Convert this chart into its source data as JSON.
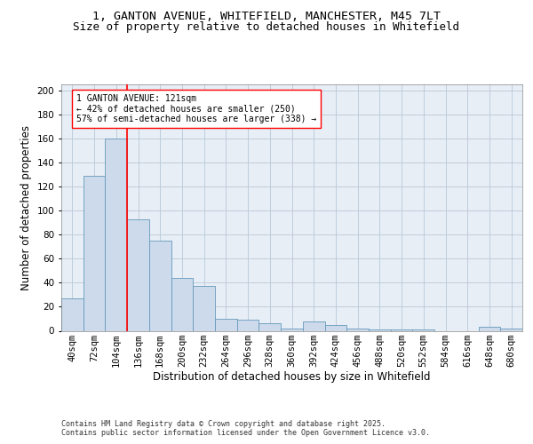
{
  "title_line1": "1, GANTON AVENUE, WHITEFIELD, MANCHESTER, M45 7LT",
  "title_line2": "Size of property relative to detached houses in Whitefield",
  "xlabel": "Distribution of detached houses by size in Whitefield",
  "ylabel": "Number of detached properties",
  "bar_vals": [
    27,
    129,
    160,
    93,
    75,
    44,
    37,
    10,
    9,
    6,
    2,
    8,
    5,
    2,
    1,
    1,
    1,
    0,
    0,
    3,
    2
  ],
  "bar_labels": [
    "40sqm",
    "72sqm",
    "104sqm",
    "136sqm",
    "168sqm",
    "200sqm",
    "232sqm",
    "264sqm",
    "296sqm",
    "328sqm",
    "360sqm",
    "392sqm",
    "424sqm",
    "456sqm",
    "488sqm",
    "520sqm",
    "552sqm",
    "584sqm",
    "616sqm",
    "648sqm",
    "680sqm"
  ],
  "bar_color": "#ccdaeb",
  "bar_edgecolor": "#6699bb",
  "grid_color": "#b8c8d8",
  "bg_color": "#e8eef6",
  "red_line_x": 2.5,
  "annotation_text_line1": "1 GANTON AVENUE: 121sqm",
  "annotation_text_line2": "← 42% of detached houses are smaller (250)",
  "annotation_text_line3": "57% of semi-detached houses are larger (338) →",
  "ylim": [
    0,
    205
  ],
  "yticks": [
    0,
    20,
    40,
    60,
    80,
    100,
    120,
    140,
    160,
    180,
    200
  ],
  "title_fontsize": 9.5,
  "subtitle_fontsize": 9,
  "axis_label_fontsize": 8.5,
  "tick_fontsize": 7.5,
  "annotation_fontsize": 7,
  "footer_fontsize": 6,
  "footer_text_line1": "Contains HM Land Registry data © Crown copyright and database right 2025.",
  "footer_text_line2": "Contains public sector information licensed under the Open Government Licence v3.0."
}
